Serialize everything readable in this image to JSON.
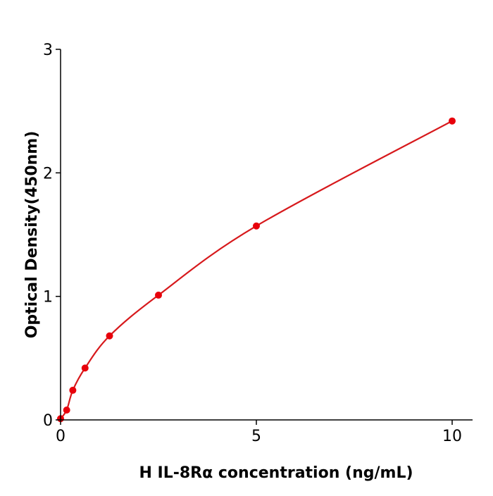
{
  "chart_data": {
    "type": "scatter",
    "title": "",
    "xlabel": "H  IL-8Rα concentration (ng/mL)",
    "ylabel": "Optical Density(450nm)",
    "xlim": [
      0,
      10.5
    ],
    "ylim": [
      0,
      3
    ],
    "xticks": [
      0,
      5,
      10
    ],
    "yticks": [
      0,
      1,
      2,
      3
    ],
    "grid": false,
    "colors": {
      "points": "#e8000b",
      "curve": "#d7191c",
      "axis": "#000000"
    },
    "series": [
      {
        "x": [
          0,
          0.156,
          0.3125,
          0.625,
          1.25,
          2.5,
          5,
          10
        ],
        "y": [
          0.01,
          0.08,
          0.24,
          0.42,
          0.68,
          1.01,
          1.57,
          2.42
        ],
        "fit": "smooth curve"
      }
    ]
  }
}
